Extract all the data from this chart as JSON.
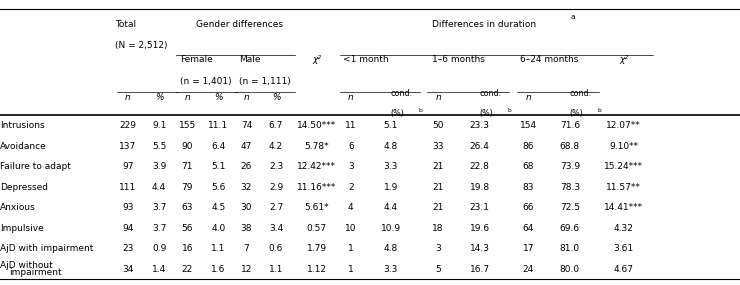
{
  "rows": [
    [
      "Intrusions",
      "229",
      "9.1",
      "155",
      "11.1",
      "74",
      "6.7",
      "14.50***",
      "11",
      "5.1",
      "50",
      "23.3",
      "154",
      "71.6",
      "12.07**"
    ],
    [
      "Avoidance",
      "137",
      "5.5",
      "90",
      "6.4",
      "47",
      "4.2",
      "5.78*",
      "6",
      "4.8",
      "33",
      "26.4",
      "86",
      "68.8",
      "9.10**"
    ],
    [
      "Failure to adapt",
      "97",
      "3.9",
      "71",
      "5.1",
      "26",
      "2.3",
      "12.42***",
      "3",
      "3.3",
      "21",
      "22.8",
      "68",
      "73.9",
      "15.24***"
    ],
    [
      "Depressed",
      "111",
      "4.4",
      "79",
      "5.6",
      "32",
      "2.9",
      "11.16***",
      "2",
      "1.9",
      "21",
      "19.8",
      "83",
      "78.3",
      "11.57**"
    ],
    [
      "Anxious",
      "93",
      "3.7",
      "63",
      "4.5",
      "30",
      "2.7",
      "5.61*",
      "4",
      "4.4",
      "21",
      "23.1",
      "66",
      "72.5",
      "14.41***"
    ],
    [
      "Impulsive",
      "94",
      "3.7",
      "56",
      "4.0",
      "38",
      "3.4",
      "0.57",
      "10",
      "10.9",
      "18",
      "19.6",
      "64",
      "69.6",
      "4.32"
    ],
    [
      "AjD with impairment",
      "23",
      "0.9",
      "16",
      "1.1",
      "7",
      "0.6",
      "1.79",
      "1",
      "4.8",
      "3",
      "14.3",
      "17",
      "81.0",
      "3.61"
    ],
    [
      "AjD without\nimpairment",
      "34",
      "1.4",
      "22",
      "1.6",
      "12",
      "1.1",
      "1.12",
      "1",
      "3.3",
      "5",
      "16.7",
      "24",
      "80.0",
      "4.67"
    ]
  ],
  "fs": 6.5,
  "fs_small": 5.8
}
